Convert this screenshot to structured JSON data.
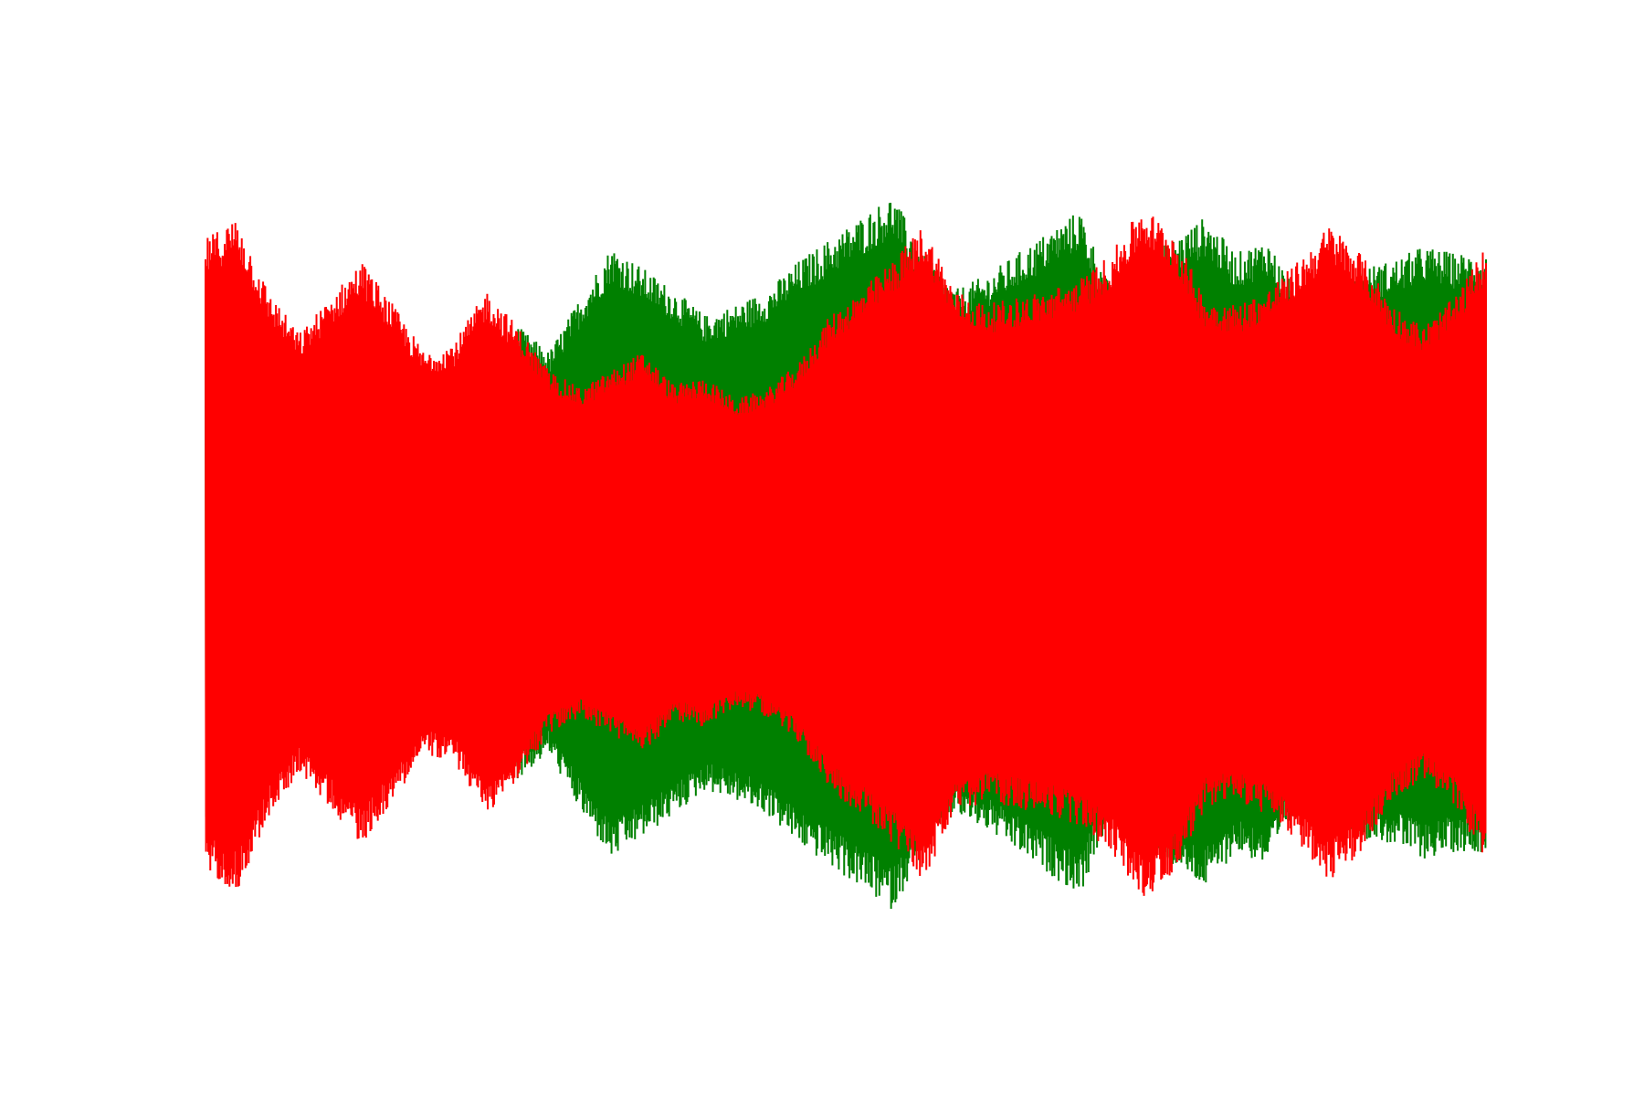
{
  "chart_data": {
    "type": "line",
    "title": "",
    "xlabel": "",
    "ylabel": "",
    "axes_visible": false,
    "grid": false,
    "legend": "none",
    "x_range": [
      0,
      1
    ],
    "y_range": [
      -1,
      1
    ],
    "series": [
      {
        "color": "#008000",
        "envelope_upper": [
          0.78,
          0.74,
          0.58,
          0.52,
          0.6,
          0.36,
          0.45,
          0.5,
          0.42,
          0.38,
          0.62,
          0.55,
          0.7,
          0.84,
          0.78,
          0.72,
          0.65,
          0.68,
          0.72,
          0.8,
          0.86,
          0.92,
          0.98,
          0.82,
          0.72,
          0.76,
          0.82,
          0.88,
          0.94,
          0.72,
          0.8,
          0.86,
          0.92,
          0.82,
          0.86,
          0.7,
          0.72,
          0.78,
          0.8,
          0.84,
          0.82,
          0.82
        ],
        "envelope_lower": [
          -0.79,
          -0.75,
          -0.59,
          -0.53,
          -0.6,
          -0.36,
          -0.45,
          -0.5,
          -0.43,
          -0.38,
          -0.62,
          -0.55,
          -0.71,
          -0.84,
          -0.78,
          -0.72,
          -0.65,
          -0.68,
          -0.72,
          -0.8,
          -0.86,
          -0.92,
          -0.98,
          -0.82,
          -0.72,
          -0.76,
          -0.82,
          -0.88,
          -0.94,
          -0.72,
          -0.8,
          -0.86,
          -0.92,
          -0.82,
          -0.86,
          -0.7,
          -0.72,
          -0.78,
          -0.8,
          -0.84,
          -0.82,
          -0.82
        ]
      },
      {
        "color": "#ff0000",
        "envelope_upper": [
          0.86,
          0.92,
          0.72,
          0.6,
          0.7,
          0.8,
          0.68,
          0.55,
          0.58,
          0.72,
          0.62,
          0.5,
          0.45,
          0.5,
          0.55,
          0.46,
          0.48,
          0.42,
          0.45,
          0.52,
          0.65,
          0.72,
          0.8,
          0.9,
          0.72,
          0.68,
          0.7,
          0.72,
          0.75,
          0.82,
          0.95,
          0.88,
          0.7,
          0.68,
          0.72,
          0.8,
          0.9,
          0.82,
          0.68,
          0.62,
          0.7,
          0.84
        ],
        "envelope_lower": [
          -0.87,
          -0.93,
          -0.73,
          -0.6,
          -0.7,
          -0.8,
          -0.68,
          -0.55,
          -0.58,
          -0.72,
          -0.62,
          -0.5,
          -0.45,
          -0.5,
          -0.55,
          -0.46,
          -0.48,
          -0.42,
          -0.45,
          -0.52,
          -0.65,
          -0.72,
          -0.8,
          -0.9,
          -0.72,
          -0.68,
          -0.7,
          -0.72,
          -0.75,
          -0.82,
          -0.95,
          -0.88,
          -0.7,
          -0.68,
          -0.72,
          -0.8,
          -0.9,
          -0.82,
          -0.68,
          -0.62,
          -0.7,
          -0.84
        ]
      }
    ]
  }
}
